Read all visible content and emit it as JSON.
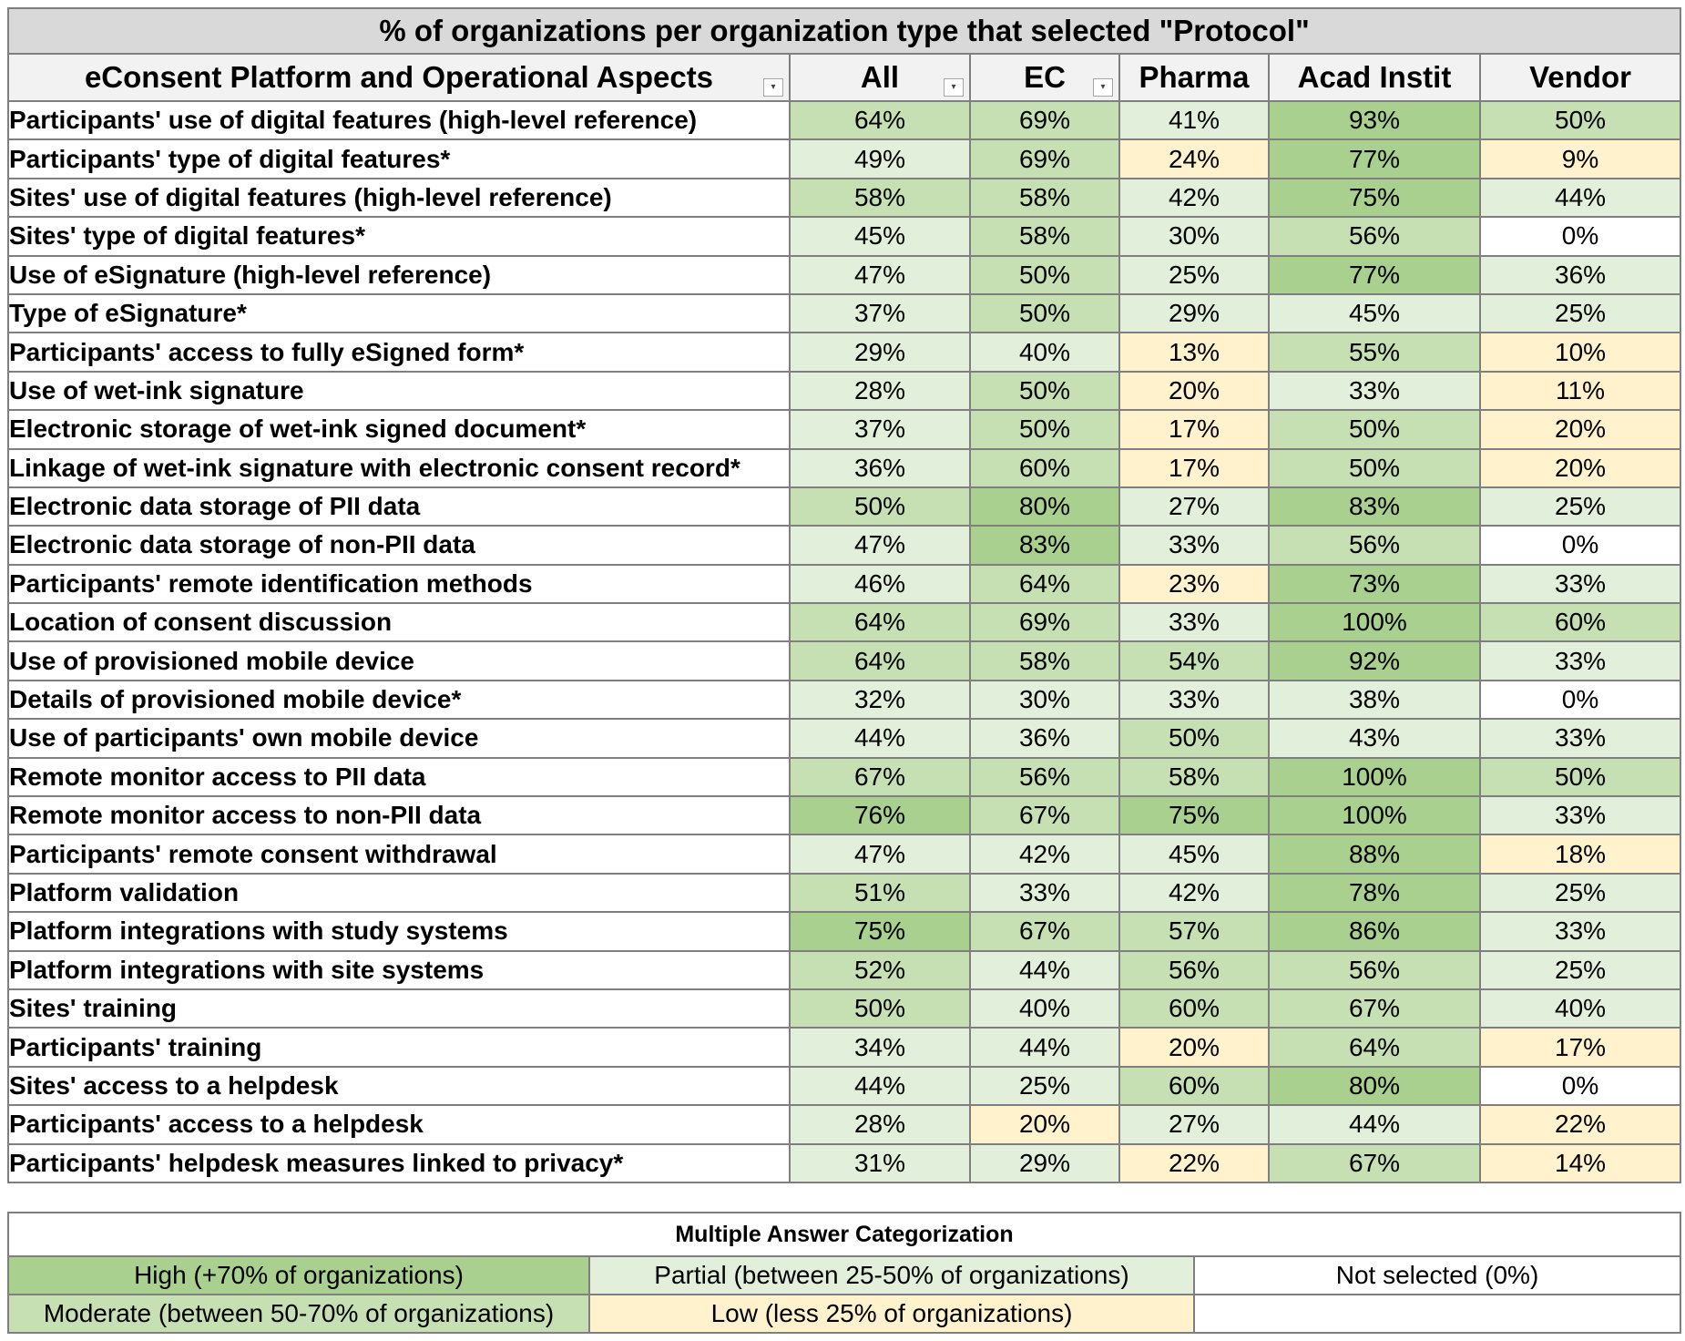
{
  "title": "% of organizations per organization type that selected \"Protocol\"",
  "columns": [
    "eConsent Platform and Operational Aspects",
    "All",
    "EC",
    "Pharma",
    "Acad Instit",
    "Vendor"
  ],
  "filter_icon": "▾",
  "colors": {
    "high": "#a9d08e",
    "moderate": "#c6e0b4",
    "partial": "#e2efda",
    "low": "#fff2cc",
    "none": "#ffffff"
  },
  "rows": [
    {
      "aspect": "Participants' use of digital features (high-level reference)",
      "all": "64%",
      "ec": "69%",
      "pharma": "41%",
      "acad": "93%",
      "vendor": "50%"
    },
    {
      "aspect": "Participants' type of digital features*",
      "all": "49%",
      "ec": "69%",
      "pharma": "24%",
      "acad": "77%",
      "vendor": "9%"
    },
    {
      "aspect": "Sites' use of digital features (high-level reference)",
      "all": "58%",
      "ec": "58%",
      "pharma": "42%",
      "acad": "75%",
      "vendor": "44%"
    },
    {
      "aspect": "Sites' type of digital features*",
      "all": "45%",
      "ec": "58%",
      "pharma": "30%",
      "acad": "56%",
      "vendor": "0%"
    },
    {
      "aspect": "Use of eSignature (high-level reference)",
      "all": "47%",
      "ec": "50%",
      "pharma": "25%",
      "acad": "77%",
      "vendor": "36%"
    },
    {
      "aspect": "Type of eSignature*",
      "all": "37%",
      "ec": "50%",
      "pharma": "29%",
      "acad": "45%",
      "vendor": "25%"
    },
    {
      "aspect": "Participants' access to fully eSigned form*",
      "all": "29%",
      "ec": "40%",
      "pharma": "13%",
      "acad": "55%",
      "vendor": "10%"
    },
    {
      "aspect": "Use of wet-ink signature",
      "all": "28%",
      "ec": "50%",
      "pharma": "20%",
      "acad": "33%",
      "vendor": "11%"
    },
    {
      "aspect": "Electronic storage of wet-ink signed document*",
      "all": "37%",
      "ec": "50%",
      "pharma": "17%",
      "acad": "50%",
      "vendor": "20%"
    },
    {
      "aspect": "Linkage of wet-ink signature with electronic consent record*",
      "all": "36%",
      "ec": "60%",
      "pharma": "17%",
      "acad": "50%",
      "vendor": "20%"
    },
    {
      "aspect": "Electronic data storage of PII data",
      "all": "50%",
      "ec": "80%",
      "pharma": "27%",
      "acad": "83%",
      "vendor": "25%"
    },
    {
      "aspect": "Electronic data storage of non-PII data",
      "all": "47%",
      "ec": "83%",
      "pharma": "33%",
      "acad": "56%",
      "vendor": "0%"
    },
    {
      "aspect": "Participants' remote identification methods",
      "all": "46%",
      "ec": "64%",
      "pharma": "23%",
      "acad": "73%",
      "vendor": "33%"
    },
    {
      "aspect": "Location of consent discussion",
      "all": "64%",
      "ec": "69%",
      "pharma": "33%",
      "acad": "100%",
      "vendor": "60%"
    },
    {
      "aspect": "Use of provisioned mobile device",
      "all": "64%",
      "ec": "58%",
      "pharma": "54%",
      "acad": "92%",
      "vendor": "33%"
    },
    {
      "aspect": "Details of provisioned mobile device*",
      "all": "32%",
      "ec": "30%",
      "pharma": "33%",
      "acad": "38%",
      "vendor": "0%"
    },
    {
      "aspect": "Use of participants' own mobile device",
      "all": "44%",
      "ec": "36%",
      "pharma": "50%",
      "acad": "43%",
      "vendor": "33%"
    },
    {
      "aspect": "Remote monitor access to PII data",
      "all": "67%",
      "ec": "56%",
      "pharma": "58%",
      "acad": "100%",
      "vendor": "50%"
    },
    {
      "aspect": "Remote monitor access to non-PII data",
      "all": "76%",
      "ec": "67%",
      "pharma": "75%",
      "acad": "100%",
      "vendor": "33%"
    },
    {
      "aspect": "Participants' remote consent withdrawal",
      "all": "47%",
      "ec": "42%",
      "pharma": "45%",
      "acad": "88%",
      "vendor": "18%"
    },
    {
      "aspect": "Platform validation",
      "all": "51%",
      "ec": "33%",
      "pharma": "42%",
      "acad": "78%",
      "vendor": "25%"
    },
    {
      "aspect": "Platform integrations with study systems",
      "all": "75%",
      "ec": "67%",
      "pharma": "57%",
      "acad": "86%",
      "vendor": "33%"
    },
    {
      "aspect": "Platform integrations with site systems",
      "all": "52%",
      "ec": "44%",
      "pharma": "56%",
      "acad": "56%",
      "vendor": "25%"
    },
    {
      "aspect": "Sites' training",
      "all": "50%",
      "ec": "40%",
      "pharma": "60%",
      "acad": "67%",
      "vendor": "40%"
    },
    {
      "aspect": "Participants' training",
      "all": "34%",
      "ec": "44%",
      "pharma": "20%",
      "acad": "64%",
      "vendor": "17%"
    },
    {
      "aspect": "Sites' access to a helpdesk",
      "all": "44%",
      "ec": "25%",
      "pharma": "60%",
      "acad": "80%",
      "vendor": "0%"
    },
    {
      "aspect": "Participants' access to a helpdesk",
      "all": "28%",
      "ec": "20%",
      "pharma": "27%",
      "acad": "44%",
      "vendor": "22%"
    },
    {
      "aspect": "Participants' helpdesk measures linked to privacy*",
      "all": "31%",
      "ec": "29%",
      "pharma": "22%",
      "acad": "67%",
      "vendor": "14%"
    }
  ],
  "legend": {
    "title": "Multiple Answer Categorization",
    "high": "High (+70% of organizations)",
    "partial": "Partial (between 25-50% of organizations)",
    "none": "Not selected (0%)",
    "moderate": "Moderate (between 50-70% of organizations)",
    "low": "Low (less 25% of organizations)"
  }
}
